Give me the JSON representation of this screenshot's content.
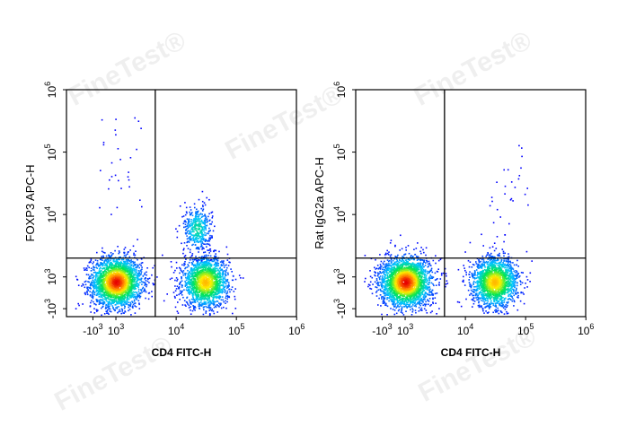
{
  "watermark": "FineTest®",
  "chart_data": [
    {
      "type": "scatter",
      "subtype": "flow-cytometry-density-plot",
      "title": "",
      "xlabel": "CD4 FITC-H",
      "ylabel": "FOXP3 APC-H",
      "x_scale": "biexponential",
      "y_scale": "biexponential",
      "x_ticks": [
        "-10^3",
        "10^3",
        "10^4",
        "10^5",
        "10^6"
      ],
      "y_ticks": [
        "-10^3",
        "10^3",
        "10^4",
        "10^5",
        "10^6"
      ],
      "quadrant_gate": {
        "x": 4500,
        "y": 2000
      },
      "populations": [
        {
          "name": "CD4- FOXP3-",
          "center": [
            1000,
            700
          ],
          "density": "very high"
        },
        {
          "name": "CD4+ FOXP3-",
          "center": [
            30000,
            700
          ],
          "density": "high"
        },
        {
          "name": "CD4+ FOXP3+",
          "center": [
            22000,
            6000
          ],
          "density": "medium"
        },
        {
          "name": "CD4- FOXP3+",
          "center": [
            1200,
            60000
          ],
          "density": "sparse"
        }
      ]
    },
    {
      "type": "scatter",
      "subtype": "flow-cytometry-density-plot",
      "title": "",
      "xlabel": "CD4 FITC-H",
      "ylabel": "Rat IgG2a APC-H",
      "x_scale": "biexponential",
      "y_scale": "biexponential",
      "x_ticks": [
        "-10^3",
        "10^3",
        "10^4",
        "10^5",
        "10^6"
      ],
      "y_ticks": [
        "-10^3",
        "10^3",
        "10^4",
        "10^5",
        "10^6"
      ],
      "quadrant_gate": {
        "x": 4500,
        "y": 2000
      },
      "populations": [
        {
          "name": "CD4- isotype-",
          "center": [
            1000,
            700
          ],
          "density": "very high"
        },
        {
          "name": "CD4+ isotype-",
          "center": [
            30000,
            700
          ],
          "density": "high"
        },
        {
          "name": "CD4+ isotype+",
          "center": [
            60000,
            20000
          ],
          "density": "sparse"
        }
      ]
    }
  ]
}
